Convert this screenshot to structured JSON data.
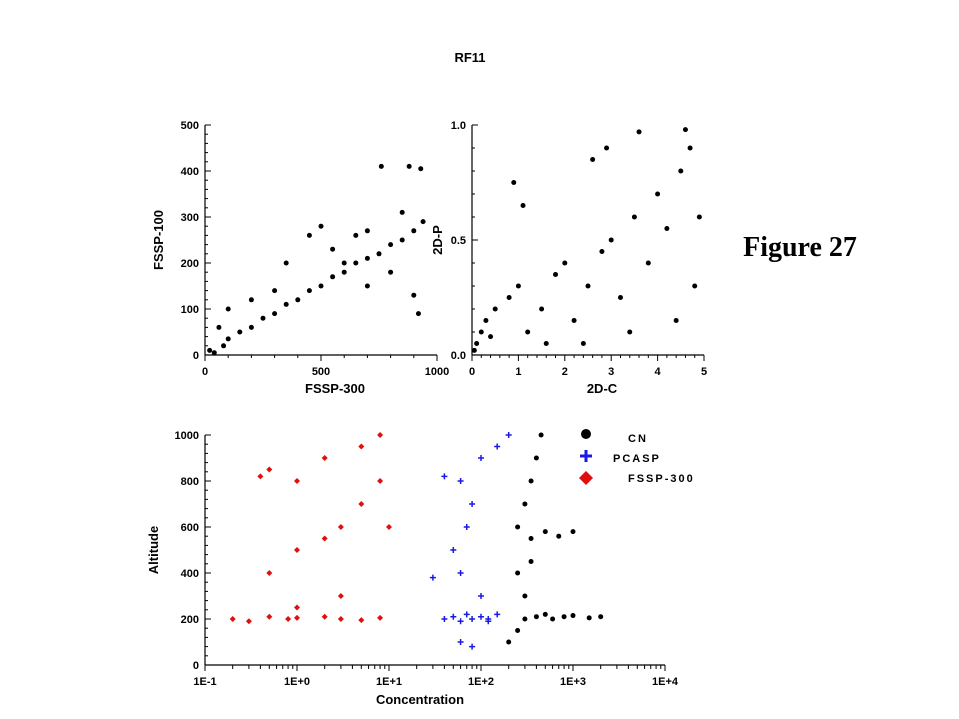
{
  "title": "RF11",
  "figure_label": "Figure 27",
  "colors": {
    "cn": "#000000",
    "pcasp": "#1a1ae6",
    "fssp300": "#e01010",
    "axis": "#000000"
  },
  "chart_data": [
    {
      "type": "scatter",
      "xlabel": "FSSP-300",
      "ylabel": "FSSP-100",
      "xlim": [
        0,
        1000
      ],
      "ylim": [
        0,
        500
      ],
      "xticks": [
        "0",
        "500",
        "1000"
      ],
      "yticks": [
        "0",
        "100",
        "200",
        "300",
        "400",
        "500"
      ],
      "series": [
        {
          "values": [
            [
              40,
              5
            ],
            [
              80,
              20
            ],
            [
              100,
              35
            ],
            [
              150,
              50
            ],
            [
              200,
              60
            ],
            [
              250,
              80
            ],
            [
              300,
              90
            ],
            [
              350,
              110
            ],
            [
              400,
              120
            ],
            [
              450,
              140
            ],
            [
              500,
              150
            ],
            [
              550,
              170
            ],
            [
              600,
              180
            ],
            [
              650,
              200
            ],
            [
              700,
              210
            ],
            [
              750,
              220
            ],
            [
              800,
              240
            ],
            [
              850,
              250
            ],
            [
              900,
              270
            ],
            [
              940,
              290
            ],
            [
              760,
              410
            ],
            [
              880,
              410
            ],
            [
              930,
              405
            ],
            [
              450,
              260
            ],
            [
              500,
              280
            ],
            [
              600,
              200
            ],
            [
              700,
              150
            ],
            [
              800,
              180
            ],
            [
              900,
              130
            ],
            [
              920,
              90
            ],
            [
              350,
              200
            ],
            [
              300,
              140
            ],
            [
              200,
              120
            ],
            [
              100,
              100
            ],
            [
              60,
              60
            ],
            [
              20,
              10
            ],
            [
              550,
              230
            ],
            [
              650,
              260
            ],
            [
              850,
              310
            ],
            [
              700,
              270
            ]
          ]
        }
      ]
    },
    {
      "type": "scatter",
      "xlabel": "2D-C",
      "ylabel": "2D-P",
      "xlim": [
        0,
        5
      ],
      "ylim": [
        0,
        1
      ],
      "xticks": [
        "0",
        "1",
        "2",
        "3",
        "4",
        "5"
      ],
      "yticks": [
        "0.0",
        "0.5",
        "1.0"
      ],
      "series": [
        {
          "values": [
            [
              0.1,
              0.05
            ],
            [
              0.2,
              0.1
            ],
            [
              0.3,
              0.15
            ],
            [
              0.5,
              0.2
            ],
            [
              0.8,
              0.25
            ],
            [
              1.0,
              0.3
            ],
            [
              1.2,
              0.1
            ],
            [
              1.5,
              0.2
            ],
            [
              1.8,
              0.35
            ],
            [
              2.0,
              0.4
            ],
            [
              2.2,
              0.15
            ],
            [
              2.5,
              0.3
            ],
            [
              2.8,
              0.45
            ],
            [
              3.0,
              0.5
            ],
            [
              3.2,
              0.25
            ],
            [
              3.5,
              0.6
            ],
            [
              3.8,
              0.4
            ],
            [
              4.0,
              0.7
            ],
            [
              4.2,
              0.55
            ],
            [
              4.5,
              0.8
            ],
            [
              4.7,
              0.9
            ],
            [
              4.6,
              0.98
            ],
            [
              3.6,
              0.97
            ],
            [
              2.6,
              0.85
            ],
            [
              2.9,
              0.9
            ],
            [
              0.9,
              0.75
            ],
            [
              1.1,
              0.65
            ],
            [
              4.8,
              0.3
            ],
            [
              4.9,
              0.6
            ],
            [
              0.05,
              0.02
            ],
            [
              0.4,
              0.08
            ],
            [
              1.6,
              0.05
            ],
            [
              2.4,
              0.05
            ],
            [
              3.4,
              0.1
            ],
            [
              4.4,
              0.15
            ]
          ]
        }
      ]
    },
    {
      "type": "scatter",
      "xlabel": "Concentration",
      "ylabel": "Altitude",
      "xscale": "log",
      "xlim": [
        0.1,
        10000
      ],
      "ylim": [
        0,
        1000
      ],
      "xticks": [
        "1E-1",
        "1E+0",
        "1E+1",
        "1E+2",
        "1E+3",
        "1E+4"
      ],
      "yticks": [
        "0",
        "200",
        "400",
        "600",
        "800",
        "1000"
      ],
      "legend": "top-right",
      "series": [
        {
          "name": "CN",
          "color": "#000000",
          "marker": "circle",
          "values": [
            [
              200,
              100
            ],
            [
              250,
              150
            ],
            [
              300,
              200
            ],
            [
              400,
              210
            ],
            [
              500,
              220
            ],
            [
              600,
              200
            ],
            [
              800,
              210
            ],
            [
              1000,
              215
            ],
            [
              1500,
              205
            ],
            [
              2000,
              210
            ],
            [
              250,
              400
            ],
            [
              250,
              600
            ],
            [
              300,
              700
            ],
            [
              350,
              800
            ],
            [
              400,
              900
            ],
            [
              450,
              1000
            ],
            [
              350,
              550
            ],
            [
              500,
              580
            ],
            [
              700,
              560
            ],
            [
              1000,
              580
            ],
            [
              300,
              300
            ],
            [
              350,
              450
            ]
          ]
        },
        {
          "name": "PCASP",
          "color": "#1a1ae6",
          "marker": "plus",
          "values": [
            [
              40,
              200
            ],
            [
              50,
              210
            ],
            [
              60,
              190
            ],
            [
              70,
              220
            ],
            [
              80,
              200
            ],
            [
              100,
              210
            ],
            [
              120,
              190
            ],
            [
              60,
              100
            ],
            [
              80,
              80
            ],
            [
              100,
              300
            ],
            [
              60,
              400
            ],
            [
              50,
              500
            ],
            [
              70,
              600
            ],
            [
              80,
              700
            ],
            [
              60,
              800
            ],
            [
              100,
              900
            ],
            [
              150,
              950
            ],
            [
              200,
              1000
            ],
            [
              40,
              820
            ],
            [
              30,
              380
            ],
            [
              120,
              200
            ],
            [
              150,
              220
            ]
          ]
        },
        {
          "name": "FSSP-300",
          "color": "#e01010",
          "marker": "diamond",
          "values": [
            [
              0.2,
              200
            ],
            [
              0.3,
              190
            ],
            [
              0.5,
              210
            ],
            [
              0.8,
              200
            ],
            [
              1,
              205
            ],
            [
              2,
              210
            ],
            [
              3,
              200
            ],
            [
              5,
              195
            ],
            [
              8,
              205
            ],
            [
              0.5,
              400
            ],
            [
              1,
              500
            ],
            [
              2,
              550
            ],
            [
              3,
              600
            ],
            [
              5,
              700
            ],
            [
              8,
              800
            ],
            [
              10,
              600
            ],
            [
              0.5,
              850
            ],
            [
              1,
              800
            ],
            [
              2,
              900
            ],
            [
              5,
              950
            ],
            [
              8,
              1000
            ],
            [
              1,
              250
            ],
            [
              0.4,
              820
            ],
            [
              3,
              300
            ]
          ]
        }
      ]
    }
  ]
}
